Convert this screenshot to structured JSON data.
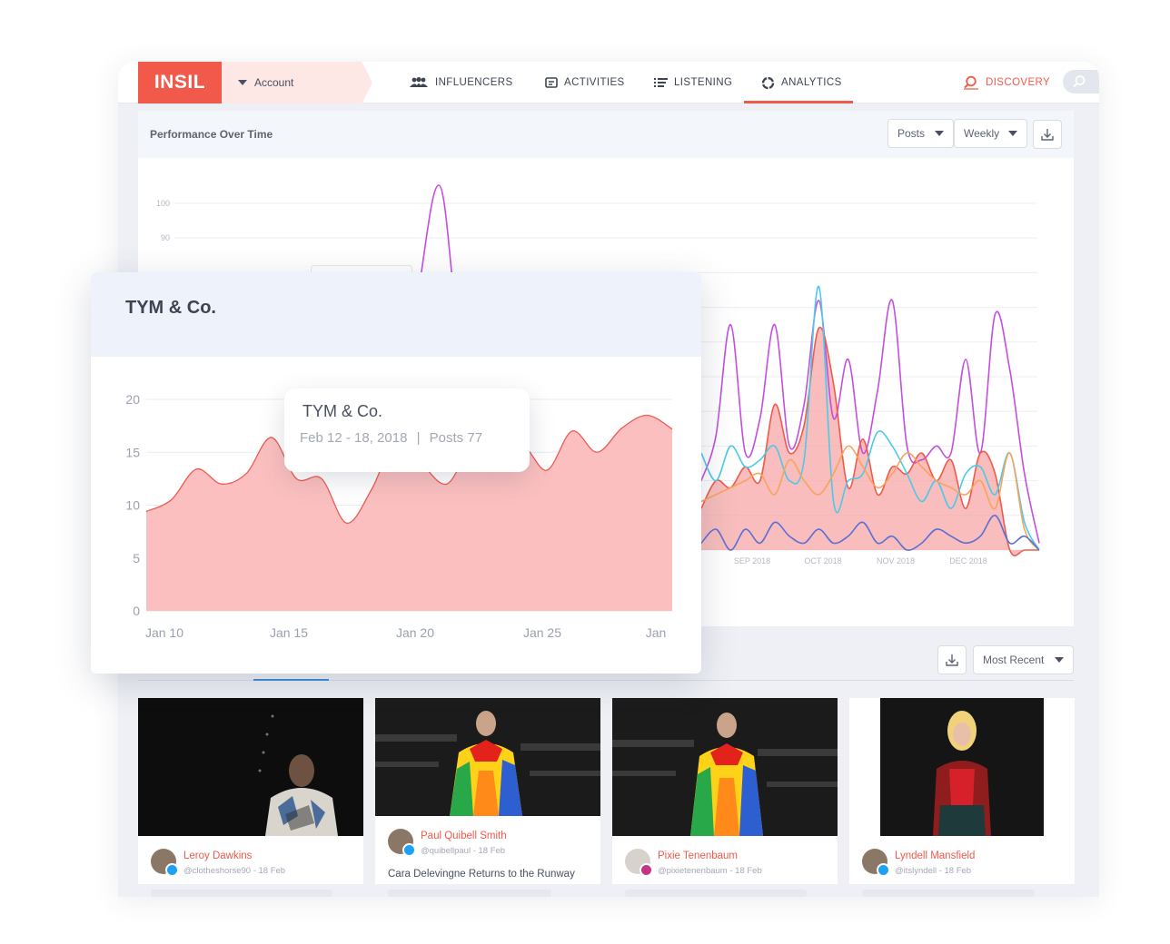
{
  "nav": {
    "logo": "INSIL",
    "account": "Account",
    "items": [
      "INFLUENCERS",
      "ACTIVITIES",
      "LISTENING",
      "ANALYTICS"
    ],
    "active": "ANALYTICS",
    "discovery": "DISCOVERY",
    "icons": [
      "users-icon",
      "activities-icon",
      "listening-icon",
      "analytics-icon",
      "discovery-icon",
      "search-icon"
    ]
  },
  "performance": {
    "title": "Performance Over Time",
    "metric_select": "Posts",
    "period_select": "Weekly"
  },
  "posts": {
    "sort_select": "Most Recent",
    "cards": [
      {
        "author": "Leroy Dawkins",
        "meta": "@clotheshorse90 - 18 Feb",
        "headline": "",
        "network": "twitter"
      },
      {
        "author": "Paul Quibell Smith",
        "meta": "@quibellpaul - 18 Feb",
        "headline": "Cara Delevingne Returns to the Runway",
        "network": "twitter"
      },
      {
        "author": "Pixie Tenenbaum",
        "meta": "@pixietenenbaum - 18 Feb",
        "headline": "",
        "network": "instagram"
      },
      {
        "author": "Lyndell Mansfield",
        "meta": "@itslyndell - 18 Feb",
        "headline": "",
        "network": "twitter"
      }
    ]
  },
  "colors": {
    "accent": "#f15a4b",
    "brand_fill": "#f6a7a6",
    "purple": "#c44ee0",
    "cyan": "#4cc9e8",
    "orange": "#f7a45c",
    "blue": "#5b6fd6"
  },
  "chart_data": [
    {
      "type": "line",
      "ylim": [
        0,
        100
      ],
      "yticks": [
        90,
        100
      ],
      "xticks": [
        "SEP 2018",
        "OCT 2018",
        "NOV 2018",
        "DEC 2018"
      ],
      "series": [
        {
          "color": "#c44ee0",
          "values": [
            20,
            33,
            65,
            28,
            38,
            65,
            30,
            42,
            72,
            38,
            55,
            28,
            46,
            72,
            30,
            26,
            30,
            28,
            55,
            28,
            68,
            52,
            22,
            2
          ]
        },
        {
          "color": "#f15a4b",
          "values": [
            12,
            20,
            18,
            24,
            20,
            42,
            28,
            36,
            64,
            48,
            18,
            32,
            16,
            24,
            22,
            28,
            20,
            26,
            12,
            28,
            22,
            0,
            0,
            0
          ]
        },
        {
          "color": "#4cc9e8",
          "values": [
            28,
            20,
            30,
            24,
            26,
            30,
            20,
            26,
            76,
            14,
            20,
            22,
            34,
            30,
            22,
            14,
            20,
            12,
            22,
            24,
            16,
            28,
            8,
            0
          ]
        },
        {
          "color": "#f7a45c",
          "values": [
            14,
            16,
            18,
            20,
            22,
            16,
            26,
            20,
            16,
            22,
            30,
            24,
            18,
            22,
            28,
            24,
            20,
            18,
            16,
            20,
            12,
            28,
            6,
            0
          ]
        },
        {
          "color": "#5b6fd6",
          "values": [
            2,
            6,
            0,
            6,
            2,
            8,
            4,
            2,
            6,
            2,
            4,
            8,
            2,
            4,
            0,
            2,
            6,
            4,
            2,
            4,
            10,
            2,
            4,
            0
          ]
        }
      ]
    },
    {
      "type": "area",
      "title": "TYM & Co.",
      "categories": [
        "Jan 10",
        "Jan 15",
        "Jan 20",
        "Jan 25",
        "Jan"
      ],
      "yticks": [
        0,
        5,
        10,
        15,
        20
      ],
      "ylim": [
        0,
        20
      ],
      "x": [
        0,
        0.5,
        1.0,
        1.5,
        2.0,
        2.5,
        3.0,
        3.5,
        4.0,
        4.5,
        5.0,
        5.5,
        6.0,
        6.5,
        7.0,
        7.5,
        8.0,
        8.5,
        9.0,
        9.5,
        10.0,
        10.5
      ],
      "values": [
        9.4,
        10.5,
        13.4,
        12.0,
        13.0,
        16.4,
        12.5,
        12.5,
        8.3,
        11.5,
        16.3,
        13.9,
        12.0,
        15.3,
        13.2,
        15.6,
        13.3,
        17.0,
        15.0,
        17.3,
        18.5,
        17.2
      ],
      "tooltip": {
        "title": "TYM & Co.",
        "date": "Feb 12 - 18, 2018",
        "separator": "|",
        "value_label": "Posts 77"
      }
    }
  ]
}
